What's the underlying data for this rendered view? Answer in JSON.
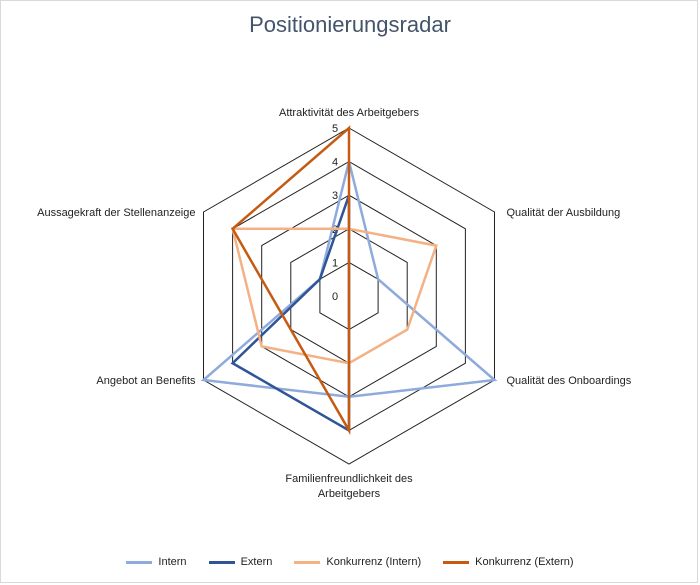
{
  "chart_data": {
    "type": "radar",
    "title": "Positionierungsradar",
    "axes": [
      [
        "Attraktivität des Arbeitgebers"
      ],
      [
        "Qualität der Ausbildung"
      ],
      [
        "Qualität des Onboardings"
      ],
      [
        "Familienfreundlichkeit des",
        "Arbeitgebers"
      ],
      [
        "Angebot an Benefits"
      ],
      [
        "Aussagekraft der Stellenanzeige"
      ]
    ],
    "ticks": [
      "0",
      "1",
      "2",
      "3",
      "4",
      "5"
    ],
    "range": [
      0,
      5
    ],
    "legend_position": "bottom",
    "series": [
      {
        "name": "Intern",
        "color": "#8faadc",
        "values": [
          4,
          1,
          5,
          3,
          5,
          1
        ]
      },
      {
        "name": "Extern",
        "color": "#2f5597",
        "values": [
          3,
          0,
          0,
          4,
          4,
          1
        ]
      },
      {
        "name": "Konkurrenz (Intern)",
        "color": "#f4b183",
        "values": [
          2,
          3,
          2,
          2,
          3,
          4
        ]
      },
      {
        "name": "Konkurrenz (Extern)",
        "color": "#c55a11",
        "values": [
          5,
          0,
          0,
          4,
          2,
          4
        ]
      }
    ]
  }
}
